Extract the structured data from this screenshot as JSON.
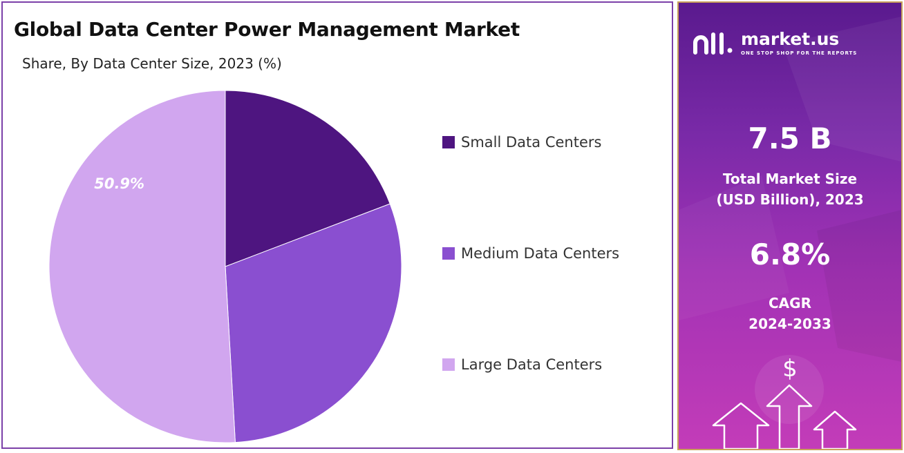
{
  "chart_data": {
    "type": "pie",
    "title": "Global Data Center Power Management Market",
    "subtitle": "Share, By Data Center Size, 2023 (%)",
    "slices": [
      {
        "name": "Small Data Centers",
        "value": 19.2,
        "color": "#4e1580",
        "label": ""
      },
      {
        "name": "Medium Data Centers",
        "value": 29.9,
        "color": "#8a4fd0",
        "label": ""
      },
      {
        "name": "Large Data Centers",
        "value": 50.9,
        "color": "#d1a6ef",
        "label": "50.9%"
      }
    ],
    "legend_position": "right"
  },
  "side_panel": {
    "brand_name": "market.us",
    "brand_tagline": "ONE STOP SHOP FOR THE REPORTS",
    "market_size_value": "7.5 B",
    "market_size_label_line1": "Total Market Size",
    "market_size_label_line2": "(USD Billion), 2023",
    "cagr_value": "6.8%",
    "cagr_label": "CAGR",
    "cagr_period": "2024-2033",
    "dollar_symbol": "$"
  },
  "icons": [
    "marketus-logo-icon",
    "dollar-icon",
    "up-arrow-icon"
  ]
}
